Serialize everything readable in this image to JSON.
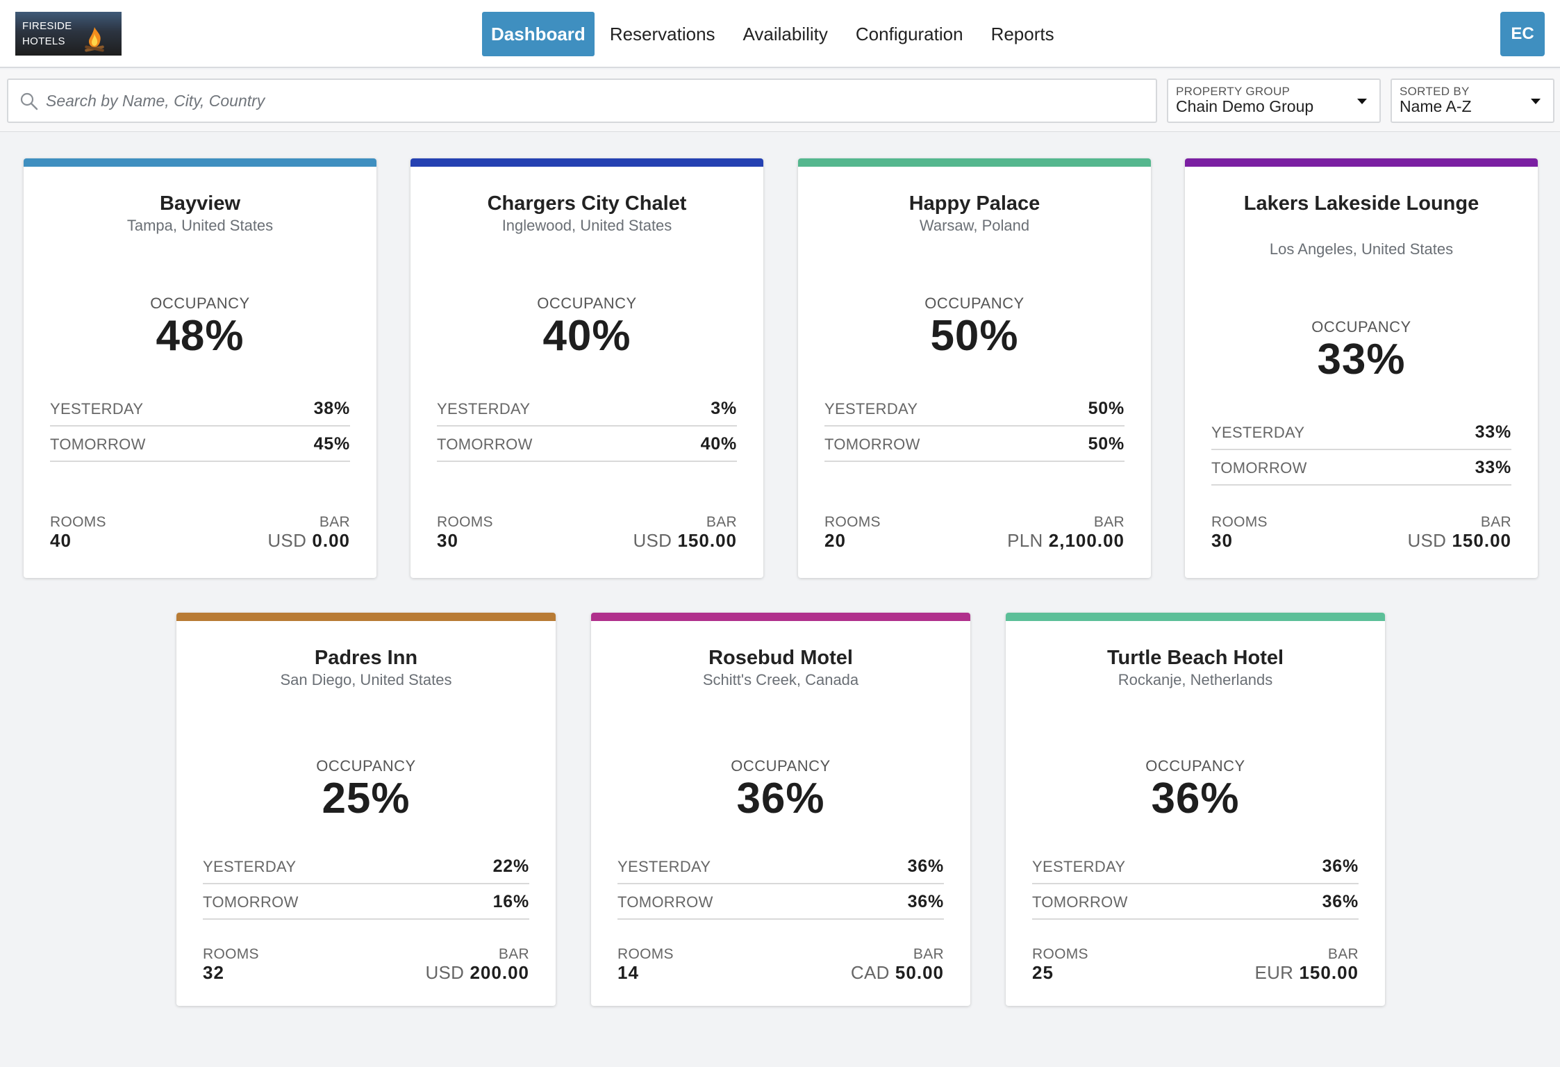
{
  "header": {
    "logo_text": "FIRESIDE\nHOTELS",
    "nav": [
      "Dashboard",
      "Reservations",
      "Availability",
      "Configuration",
      "Reports"
    ],
    "active_nav": "Dashboard",
    "avatar_initials": "EC",
    "accent_color": "#3f8fc0"
  },
  "filters": {
    "search_placeholder": "Search by Name, City, Country",
    "search_value": "",
    "group_label": "PROPERTY GROUP",
    "group_value": "Chain Demo Group",
    "sort_label": "SORTED BY",
    "sort_value": "Name A-Z"
  },
  "labels": {
    "occupancy": "OCCUPANCY",
    "yesterday": "YESTERDAY",
    "tomorrow": "TOMORROW",
    "rooms": "ROOMS",
    "bar": "BAR"
  },
  "hotels": [
    {
      "name": "Bayview",
      "location": "Tampa, United States",
      "occupancy": "48%",
      "yesterday": "38%",
      "tomorrow": "45%",
      "rooms": "40",
      "currency": "USD",
      "bar": "0.00",
      "color": "#3f8fc0"
    },
    {
      "name": "Chargers City Chalet",
      "location": "Inglewood, United States",
      "occupancy": "40%",
      "yesterday": "3%",
      "tomorrow": "40%",
      "rooms": "30",
      "currency": "USD",
      "bar": "150.00",
      "color": "#2541b2"
    },
    {
      "name": "Happy Palace",
      "location": "Warsaw, Poland",
      "occupancy": "50%",
      "yesterday": "50%",
      "tomorrow": "50%",
      "rooms": "20",
      "currency": "PLN",
      "bar": "2,100.00",
      "color": "#55b78e"
    },
    {
      "name": "Lakers Lakeside Lounge",
      "location": "Los Angeles, United States",
      "occupancy": "33%",
      "yesterday": "33%",
      "tomorrow": "33%",
      "rooms": "30",
      "currency": "USD",
      "bar": "150.00",
      "color": "#7b1fa2"
    },
    {
      "name": "Padres Inn",
      "location": "San Diego, United States",
      "occupancy": "25%",
      "yesterday": "22%",
      "tomorrow": "16%",
      "rooms": "32",
      "currency": "USD",
      "bar": "200.00",
      "color": "#b87b35"
    },
    {
      "name": "Rosebud Motel",
      "location": "Schitt's Creek, Canada",
      "occupancy": "36%",
      "yesterday": "36%",
      "tomorrow": "36%",
      "rooms": "14",
      "currency": "CAD",
      "bar": "50.00",
      "color": "#b0308c"
    },
    {
      "name": "Turtle Beach Hotel",
      "location": "Rockanje, Netherlands",
      "occupancy": "36%",
      "yesterday": "36%",
      "tomorrow": "36%",
      "rooms": "25",
      "currency": "EUR",
      "bar": "150.00",
      "color": "#5cbf98"
    }
  ]
}
